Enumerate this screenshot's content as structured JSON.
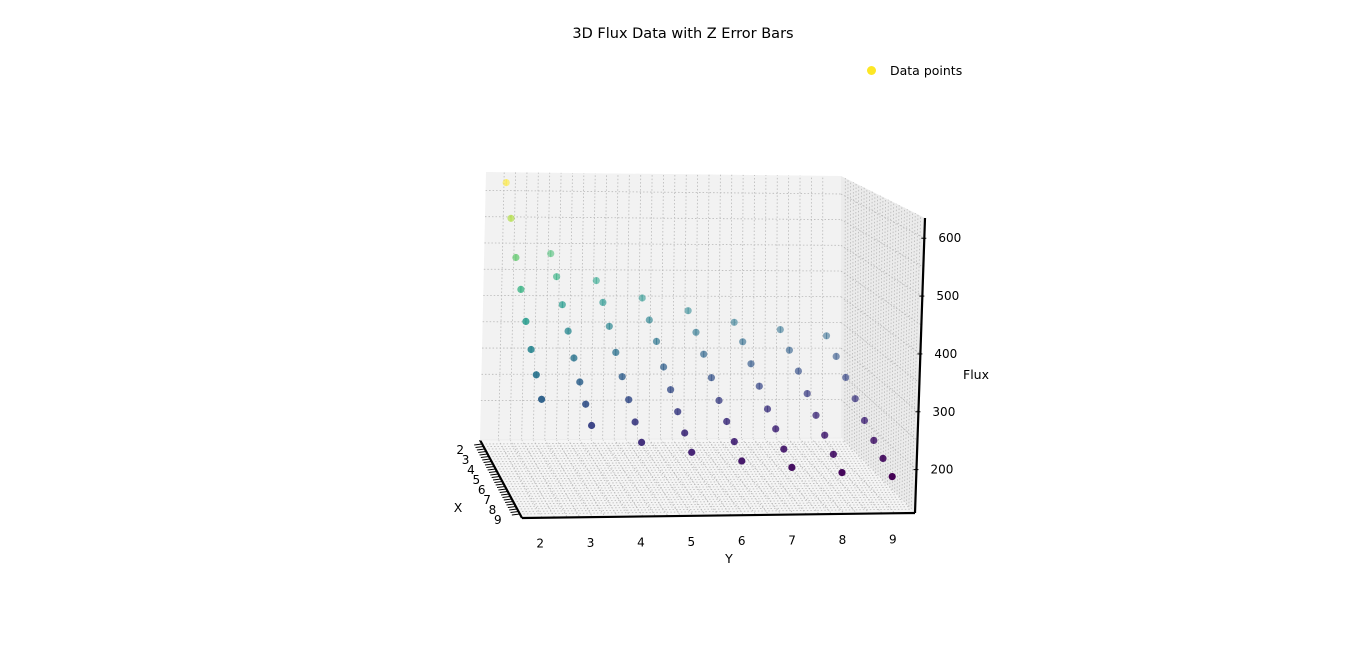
{
  "chart_data": {
    "type": "scatter",
    "projection": "3d",
    "title": "3D Flux Data with Z Error Bars",
    "xlabel": "X",
    "ylabel": "Y",
    "zlabel": "Flux",
    "xlim": [
      1.6,
      9.4
    ],
    "ylim": [
      1.6,
      9.4
    ],
    "zlim": [
      125,
      635
    ],
    "x_ticks": [
      "2",
      "3",
      "4",
      "5",
      "6",
      "7",
      "8",
      "9"
    ],
    "y_ticks": [
      "2",
      "3",
      "4",
      "5",
      "6",
      "7",
      "8",
      "9"
    ],
    "z_ticks": [
      "200",
      "300",
      "400",
      "500",
      "600"
    ],
    "grid": true,
    "colormap": "viridis",
    "error_bars": "z",
    "legend": {
      "position": "top-right",
      "label": "Data points",
      "marker_color": "#fde725"
    },
    "series": [
      {
        "name": "Data points",
        "x": [
          2,
          2,
          2,
          2,
          2,
          2,
          2,
          2,
          3,
          3,
          3,
          3,
          3,
          3,
          3,
          3,
          4,
          4,
          4,
          4,
          4,
          4,
          4,
          4,
          5,
          5,
          5,
          5,
          5,
          5,
          5,
          5,
          6,
          6,
          6,
          6,
          6,
          6,
          6,
          6,
          7,
          7,
          7,
          7,
          7,
          7,
          7,
          7,
          8,
          8,
          8,
          8,
          8,
          8,
          8,
          8,
          9,
          9,
          9,
          9,
          9,
          9,
          9,
          9
        ],
        "y": [
          2,
          3,
          4,
          5,
          6,
          7,
          8,
          9,
          2,
          3,
          4,
          5,
          6,
          7,
          8,
          9,
          2,
          3,
          4,
          5,
          6,
          7,
          8,
          9,
          2,
          3,
          4,
          5,
          6,
          7,
          8,
          9,
          2,
          3,
          4,
          5,
          6,
          7,
          8,
          9,
          2,
          3,
          4,
          5,
          6,
          7,
          8,
          9,
          2,
          3,
          4,
          5,
          6,
          7,
          8,
          9,
          2,
          3,
          4,
          5,
          6,
          7,
          8,
          9
        ],
        "z": [
          620,
          486,
          435,
          402,
          378,
          356,
          342,
          330,
          565,
          456,
          408,
          375,
          352,
          334,
          318,
          306,
          505,
          418,
          378,
          350,
          326,
          308,
          294,
          282,
          460,
          384,
          345,
          318,
          298,
          282,
          268,
          258,
          416,
          350,
          316,
          292,
          272,
          256,
          244,
          234,
          380,
          322,
          290,
          268,
          250,
          236,
          224,
          214,
          350,
          298,
          266,
          246,
          230,
          216,
          206,
          198,
          322,
          276,
          246,
          228,
          212,
          200,
          190,
          182
        ]
      }
    ]
  }
}
